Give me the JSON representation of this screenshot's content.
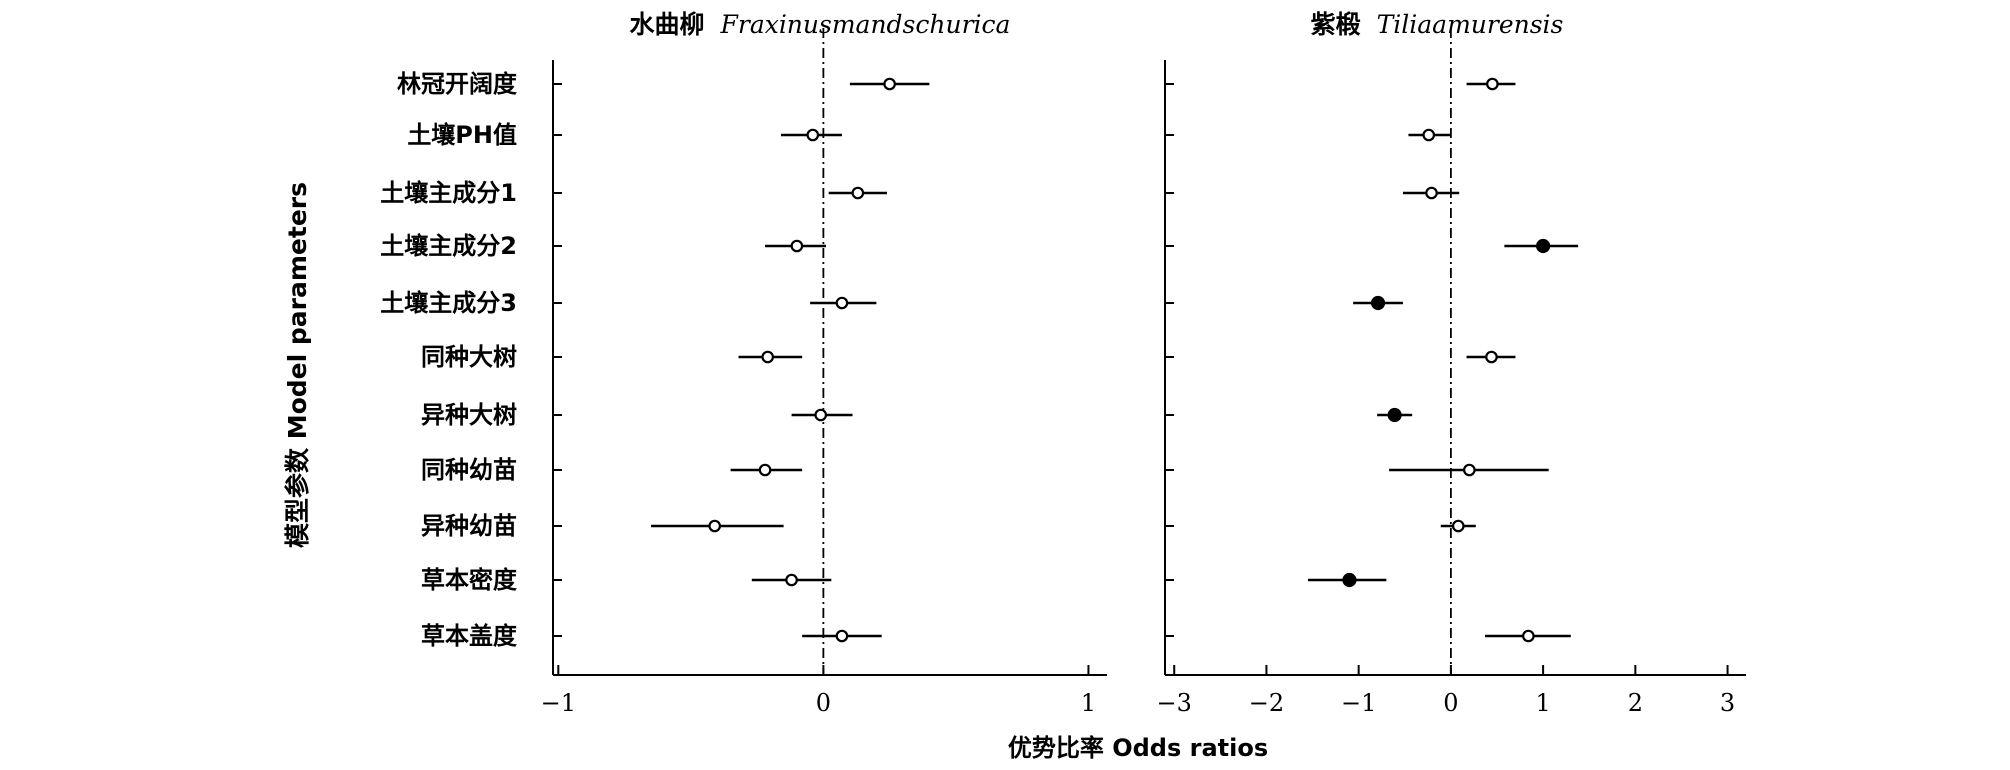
{
  "figure": {
    "xlabel": "优势比率 Odds ratios",
    "ylabel": "模型参数 Model parameters"
  },
  "chart_data": [
    {
      "type": "forest",
      "title_cn": "水曲柳",
      "title_latin": "Fraxinusmandschurica",
      "ylabel": "模型参数 Model parameters",
      "xlabel": "优势比率 Odds ratios",
      "xlim": [
        -1.02,
        1.07
      ],
      "xticks": [
        -1,
        0,
        1
      ],
      "xtick_labels": [
        "−1",
        "0",
        "1"
      ],
      "reference_line": 0,
      "categories": [
        "林冠开阔度",
        "土壤PH值",
        "土壤主成分1",
        "土壤主成分2",
        "土壤主成分3",
        "同种大树",
        "异种大树",
        "同种幼苗",
        "异种幼苗",
        "草本密度",
        "草本盖度"
      ],
      "estimate": [
        0.25,
        -0.04,
        0.13,
        -0.1,
        0.07,
        -0.21,
        -0.01,
        -0.22,
        -0.41,
        -0.12,
        0.07
      ],
      "lower": [
        0.1,
        -0.16,
        0.02,
        -0.22,
        -0.05,
        -0.32,
        -0.12,
        -0.35,
        -0.65,
        -0.27,
        -0.08
      ],
      "upper": [
        0.4,
        0.07,
        0.24,
        0.01,
        0.2,
        -0.08,
        0.11,
        -0.08,
        -0.15,
        0.03,
        0.22
      ],
      "significant": [
        false,
        false,
        false,
        false,
        false,
        false,
        false,
        false,
        false,
        false,
        false
      ]
    },
    {
      "type": "forest",
      "title_cn": "紫椴",
      "title_latin": "Tiliaamurensis",
      "xlim": [
        -3.1,
        3.2
      ],
      "xticks": [
        -3,
        -2,
        -1,
        0,
        1,
        2,
        3
      ],
      "xtick_labels": [
        "−3",
        "−2",
        "−1",
        "0",
        "1",
        "2",
        "3"
      ],
      "reference_line": 0,
      "categories": [
        "林冠开阔度",
        "土壤PH值",
        "土壤主成分1",
        "土壤主成分2",
        "土壤主成分3",
        "同种大树",
        "异种大树",
        "同种幼苗",
        "异种幼苗",
        "草本密度",
        "草本盖度"
      ],
      "estimate": [
        0.45,
        -0.24,
        -0.21,
        1.0,
        -0.79,
        0.44,
        -0.61,
        0.2,
        0.08,
        -1.1,
        0.84
      ],
      "lower": [
        0.17,
        -0.46,
        -0.52,
        0.58,
        -1.06,
        0.17,
        -0.8,
        -0.67,
        -0.11,
        -1.55,
        0.37
      ],
      "upper": [
        0.7,
        -0.01,
        0.09,
        1.38,
        -0.52,
        0.7,
        -0.42,
        1.06,
        0.27,
        -0.7,
        1.3
      ],
      "significant": [
        false,
        false,
        false,
        true,
        true,
        false,
        true,
        false,
        false,
        true,
        false
      ]
    }
  ]
}
